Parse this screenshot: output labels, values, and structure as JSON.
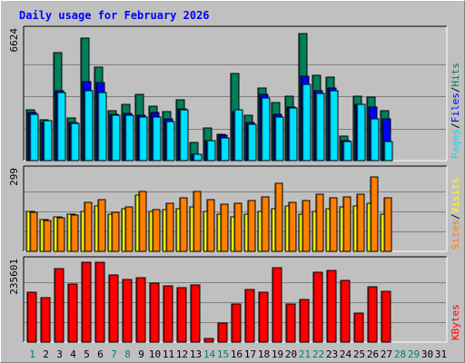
{
  "title": "Daily usage for February 2026",
  "colors": {
    "title": "#0000ff",
    "hits": "#00805c",
    "files": "#0000ff",
    "pages": "#00e0ff",
    "visits": "#ffff00",
    "sites": "#ff8000",
    "kbytes": "#ff0000",
    "weekend_day": "#00805c",
    "weekday": "#000000"
  },
  "chart_data": {
    "type": "bar",
    "title": "Daily usage for February 2026",
    "categories": [
      "1",
      "2",
      "3",
      "4",
      "5",
      "6",
      "7",
      "8",
      "9",
      "10",
      "11",
      "12",
      "13",
      "14",
      "15",
      "16",
      "17",
      "18",
      "19",
      "20",
      "21",
      "22",
      "23",
      "24",
      "25",
      "26",
      "27",
      "28",
      "29",
      "30",
      "31"
    ],
    "weekend_days": [
      "1",
      "7",
      "8",
      "14",
      "15",
      "21",
      "22",
      "28",
      "29"
    ],
    "panels": [
      {
        "id": "hits",
        "max_label": "6624",
        "legend": [
          "Hits",
          "/",
          "Files",
          "/",
          "Pages"
        ],
        "ylim": [
          0,
          6624
        ],
        "series": [
          {
            "name": "Hits",
            "values": [
              2590,
              2090,
              5540,
              2180,
              6320,
              4800,
              2580,
              2870,
              3400,
              2780,
              2520,
              3110,
              920,
              1700,
              1340,
              4460,
              2350,
              3710,
              2980,
              3330,
              6540,
              4400,
              4310,
              1270,
              3320,
              3250,
              2580,
              0,
              0,
              0,
              0
            ]
          },
          {
            "name": "Files",
            "values": [
              2450,
              1960,
              3610,
              1940,
              4080,
              4000,
              2390,
              2430,
              2350,
              2480,
              2160,
              2660,
              330,
              1020,
              1320,
              2520,
              1970,
              3420,
              2370,
              2750,
              4360,
              3570,
              3740,
              1030,
              2890,
              2730,
              2150,
              0,
              0,
              0,
              0
            ]
          },
          {
            "name": "Pages",
            "values": [
              2360,
              2040,
              3500,
              1920,
              3580,
              3510,
              2320,
              2340,
              2260,
              2240,
              1990,
              2600,
              310,
              1020,
              1160,
              2590,
              1860,
              3240,
              2250,
              2710,
              3920,
              3460,
              3610,
              980,
              2870,
              2130,
              990,
              0,
              0,
              0,
              0
            ]
          }
        ]
      },
      {
        "id": "visits",
        "max_label": "299",
        "legend": [
          "Visits",
          "/",
          "Sites"
        ],
        "ylim": [
          0,
          299
        ],
        "series": [
          {
            "name": "Visits",
            "values": [
              150,
              120,
              130,
              140,
              150,
              170,
              140,
              160,
              210,
              150,
              155,
              160,
              165,
              150,
              140,
              130,
              140,
              150,
              160,
              170,
              140,
              150,
              160,
              165,
              170,
              180,
              140,
              0,
              0,
              0,
              0
            ]
          },
          {
            "name": "Sites",
            "values": [
              145,
              115,
              125,
              135,
              185,
              195,
              145,
              165,
              225,
              155,
              180,
              200,
              225,
              195,
              175,
              180,
              190,
              205,
              255,
              185,
              190,
              215,
              200,
              205,
              215,
              280,
              200,
              0,
              0,
              0,
              0
            ]
          }
        ]
      },
      {
        "id": "kbytes",
        "max_label": "235601",
        "legend": [
          "KBytes"
        ],
        "ylim": [
          0,
          235601
        ],
        "series": [
          {
            "name": "KBytes",
            "values": [
              146000,
              130000,
              218000,
              172000,
              235000,
              235000,
              199000,
              185000,
              189000,
              173000,
              166000,
              161000,
              169000,
              12000,
              55000,
              112000,
              154000,
              148000,
              219000,
              113000,
              126000,
              206000,
              211000,
              181000,
              85000,
              163000,
              149000,
              0,
              0,
              0,
              0
            ]
          }
        ]
      }
    ]
  }
}
